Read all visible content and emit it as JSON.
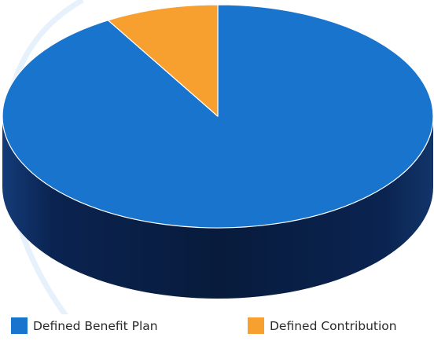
{
  "chart_data": {
    "type": "pie",
    "title": "",
    "categories": [
      "Defined Benefit Plan",
      "Defined Contribution"
    ],
    "values": [
      91.5,
      8.5
    ],
    "colors": [
      "#1874CD",
      "#F7A030"
    ],
    "legend_position": "bottom",
    "style": "3d"
  },
  "legend": {
    "items": [
      {
        "label": "Defined Benefit Plan",
        "color": "#1874CD"
      },
      {
        "label": "Defined Contribution",
        "color": "#F7A030"
      }
    ]
  }
}
